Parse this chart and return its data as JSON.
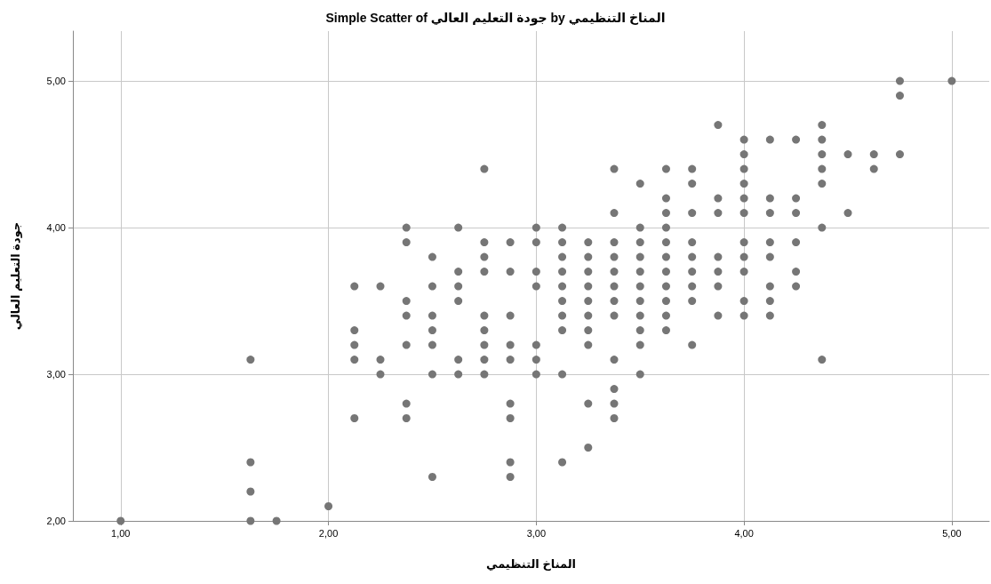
{
  "chart_data": {
    "type": "scatter",
    "title": "Simple Scatter of جودة التعليم العالي by المناخ التنظيمي",
    "xlabel": "المناخ التنظيمي",
    "ylabel": "جودة التعليم العالي",
    "x": [
      1.0,
      1.625,
      1.625,
      1.625,
      1.625,
      1.75,
      2.0,
      2.125,
      2.125,
      2.125,
      2.125,
      2.125,
      2.25,
      2.25,
      2.25,
      2.375,
      2.375,
      2.375,
      2.375,
      2.375,
      2.375,
      2.375,
      2.5,
      2.5,
      2.5,
      2.5,
      2.5,
      2.5,
      2.5,
      2.625,
      2.625,
      2.625,
      2.625,
      2.625,
      2.625,
      2.75,
      2.75,
      2.75,
      2.75,
      2.75,
      2.75,
      2.75,
      2.75,
      2.75,
      2.875,
      2.875,
      2.875,
      2.875,
      2.875,
      2.875,
      2.875,
      2.875,
      2.875,
      3.0,
      3.0,
      3.0,
      3.0,
      3.0,
      3.0,
      3.0,
      3.125,
      3.125,
      3.125,
      3.125,
      3.125,
      3.125,
      3.125,
      3.125,
      3.125,
      3.125,
      3.25,
      3.25,
      3.25,
      3.25,
      3.25,
      3.25,
      3.25,
      3.25,
      3.25,
      3.25,
      3.375,
      3.375,
      3.375,
      3.375,
      3.375,
      3.375,
      3.375,
      3.375,
      3.375,
      3.375,
      3.375,
      3.375,
      3.5,
      3.5,
      3.5,
      3.5,
      3.5,
      3.5,
      3.5,
      3.5,
      3.5,
      3.5,
      3.5,
      3.625,
      3.625,
      3.625,
      3.625,
      3.625,
      3.625,
      3.625,
      3.625,
      3.625,
      3.625,
      3.625,
      3.75,
      3.75,
      3.75,
      3.75,
      3.75,
      3.75,
      3.75,
      3.75,
      3.75,
      3.875,
      3.875,
      3.875,
      3.875,
      3.875,
      3.875,
      3.875,
      4.0,
      4.0,
      4.0,
      4.0,
      4.0,
      4.0,
      4.0,
      4.0,
      4.0,
      4.0,
      4.0,
      4.125,
      4.125,
      4.125,
      4.125,
      4.125,
      4.125,
      4.125,
      4.125,
      4.25,
      4.25,
      4.25,
      4.25,
      4.25,
      4.25,
      4.375,
      4.375,
      4.375,
      4.375,
      4.375,
      4.375,
      4.375,
      4.5,
      4.5,
      4.625,
      4.625,
      4.75,
      4.75,
      4.75,
      5.0
    ],
    "values": [
      2.0,
      3.1,
      2.4,
      2.2,
      2.0,
      2.0,
      2.1,
      3.6,
      3.3,
      3.2,
      3.1,
      2.7,
      3.6,
      3.1,
      3.0,
      4.0,
      3.9,
      3.5,
      3.4,
      3.2,
      2.8,
      2.7,
      3.8,
      3.6,
      3.4,
      3.3,
      3.2,
      3.0,
      2.3,
      4.0,
      3.7,
      3.6,
      3.5,
      3.1,
      3.0,
      4.4,
      3.9,
      3.8,
      3.7,
      3.4,
      3.3,
      3.2,
      3.1,
      3.0,
      3.9,
      3.7,
      3.4,
      3.2,
      3.1,
      2.8,
      2.7,
      2.4,
      2.3,
      4.0,
      3.9,
      3.7,
      3.6,
      3.2,
      3.1,
      3.0,
      4.0,
      3.9,
      3.8,
      3.7,
      3.6,
      3.5,
      3.4,
      3.3,
      3.0,
      2.4,
      3.9,
      3.8,
      3.7,
      3.6,
      3.5,
      3.4,
      3.3,
      3.2,
      2.8,
      2.5,
      4.4,
      4.1,
      3.9,
      3.8,
      3.7,
      3.6,
      3.5,
      3.4,
      3.1,
      2.9,
      2.8,
      2.7,
      4.3,
      4.0,
      3.9,
      3.8,
      3.7,
      3.6,
      3.5,
      3.4,
      3.3,
      3.2,
      3.0,
      4.4,
      4.2,
      4.1,
      4.0,
      3.9,
      3.8,
      3.7,
      3.6,
      3.5,
      3.4,
      3.3,
      4.4,
      4.3,
      4.1,
      3.9,
      3.8,
      3.7,
      3.6,
      3.5,
      3.2,
      4.7,
      4.2,
      4.1,
      3.8,
      3.7,
      3.6,
      3.4,
      4.6,
      4.5,
      4.4,
      4.3,
      4.2,
      4.1,
      3.9,
      3.8,
      3.7,
      3.5,
      3.4,
      4.6,
      4.2,
      4.1,
      3.9,
      3.8,
      3.6,
      3.5,
      3.4,
      4.6,
      4.2,
      4.1,
      3.9,
      3.7,
      3.6,
      4.7,
      4.6,
      4.5,
      4.4,
      4.3,
      4.0,
      3.1,
      4.5,
      4.1,
      4.5,
      4.4,
      5.0,
      4.9,
      4.5,
      5.0
    ],
    "color": "#767676",
    "marker": "circle",
    "grid": true,
    "xlim": [
      0.77,
      5.18
    ],
    "ylim": [
      2.0,
      5.34
    ],
    "xticks": [
      {
        "value": 1,
        "label": "1,00"
      },
      {
        "value": 2,
        "label": "2,00"
      },
      {
        "value": 3,
        "label": "3,00"
      },
      {
        "value": 4,
        "label": "4,00"
      },
      {
        "value": 5,
        "label": "5,00"
      }
    ],
    "yticks": [
      {
        "value": 2,
        "label": "2,00"
      },
      {
        "value": 3,
        "label": "3,00"
      },
      {
        "value": 4,
        "label": "4,00"
      },
      {
        "value": 5,
        "label": "5,00"
      }
    ]
  }
}
